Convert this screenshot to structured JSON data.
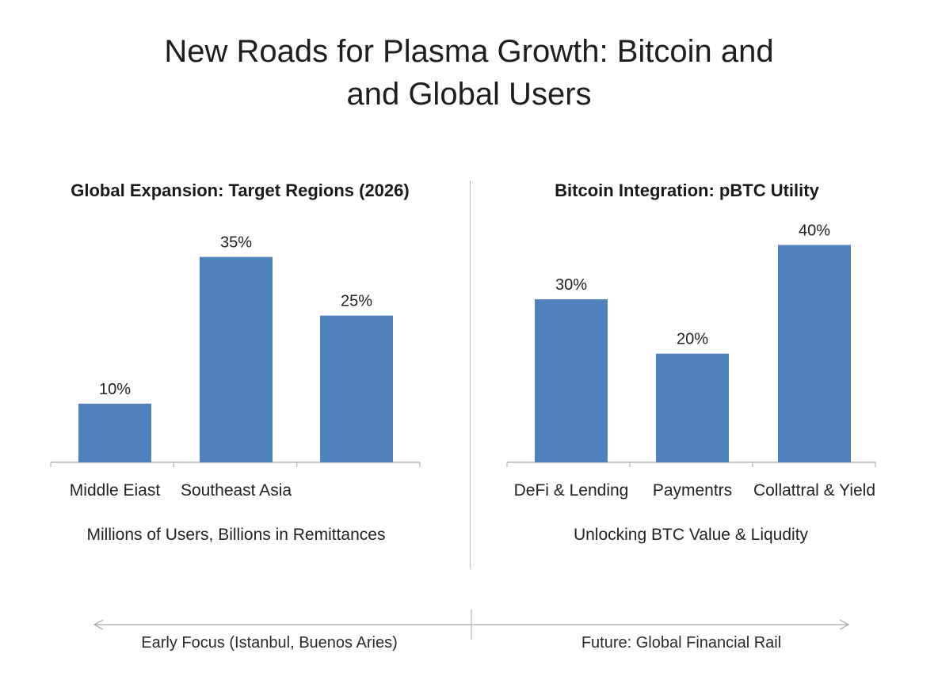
{
  "title": {
    "line1": "New Roads for Plasma Growth: Bitcoin and",
    "line2": "and Global Users"
  },
  "colors": {
    "bar": "#4f81bd",
    "axis": "#a6a6a6",
    "divider": "#b8b8b8"
  },
  "chart_data": [
    {
      "type": "bar",
      "title": "Global Expansion: Target Regions (2026)",
      "categories": [
        "Middle Eiast",
        "Southeast Asia",
        ""
      ],
      "values": [
        10,
        35,
        25
      ],
      "value_labels": [
        "10%",
        "35%",
        "25%"
      ],
      "xlabel": "Millions of Users, Billions in Remittances",
      "ylabel": "",
      "grid": false
    },
    {
      "type": "bar",
      "title": "Bitcoin Integration: pBTC Utility",
      "categories": [
        "DeFi & Lending",
        "Paymentrs",
        "Collattral & Yield"
      ],
      "values": [
        30,
        20,
        40
      ],
      "value_labels": [
        "30%",
        "20%",
        "40%"
      ],
      "xlabel": "Unlocking BTC Value & Liqudity",
      "ylabel": "",
      "grid": false
    }
  ],
  "timeline": {
    "left_label": "Early Focus (Istanbul, Buenos Aries)",
    "right_label": "Future: Global Financial Rail"
  }
}
